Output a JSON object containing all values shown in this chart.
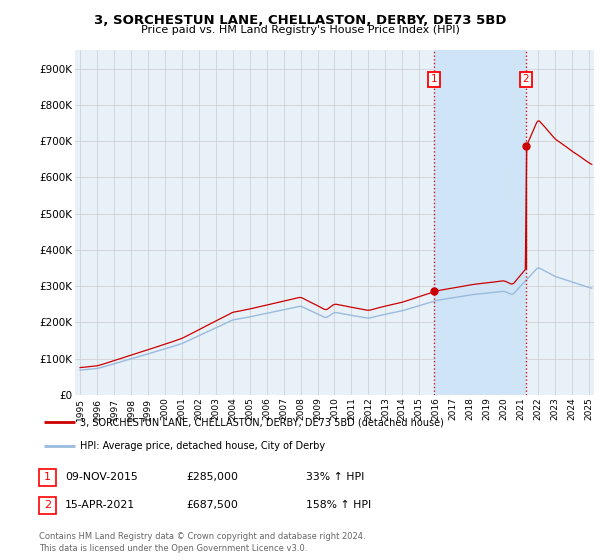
{
  "title": "3, SORCHESTUN LANE, CHELLASTON, DERBY, DE73 5BD",
  "subtitle": "Price paid vs. HM Land Registry's House Price Index (HPI)",
  "hpi_label": "HPI: Average price, detached house, City of Derby",
  "property_label": "3, SORCHESTUN LANE, CHELLASTON, DERBY, DE73 5BD (detached house)",
  "footnote": "Contains HM Land Registry data © Crown copyright and database right 2024.\nThis data is licensed under the Open Government Licence v3.0.",
  "sale1_label": "09-NOV-2015",
  "sale1_price": "£285,000",
  "sale1_hpi": "33% ↑ HPI",
  "sale2_label": "15-APR-2021",
  "sale2_price": "£687,500",
  "sale2_hpi": "158% ↑ HPI",
  "ylim": [
    0,
    950000
  ],
  "yticks": [
    0,
    100000,
    200000,
    300000,
    400000,
    500000,
    600000,
    700000,
    800000,
    900000
  ],
  "ytick_labels": [
    "£0",
    "£100K",
    "£200K",
    "£300K",
    "£400K",
    "£500K",
    "£600K",
    "£700K",
    "£800K",
    "£900K"
  ],
  "property_color": "#cc0000",
  "hpi_color": "#99bbdd",
  "sale1_year": 2015.854,
  "sale2_year": 2021.286,
  "grid_color": "#cccccc",
  "bg_color": "#ffffff",
  "plot_bg_color": "#e8f0f8",
  "shade_color": "#d0e4f7",
  "xlim_left": 1994.7,
  "xlim_right": 2025.3
}
